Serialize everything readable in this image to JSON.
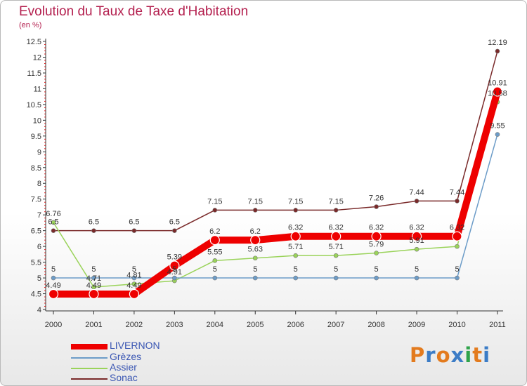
{
  "title": "Evolution du Taux de Taxe d'Habitation",
  "unit_label": "(en %)",
  "logo_text": "Proxiti",
  "colors": {
    "title": "#b4204f",
    "axis": "#333333",
    "legend_text": "#3a56b3"
  },
  "chart_data": {
    "type": "line",
    "title": "Evolution du Taux de Taxe d'Habitation",
    "ylabel": "(en %)",
    "xlabel": "",
    "categories": [
      "2000",
      "2001",
      "2002",
      "2003",
      "2004",
      "2005",
      "2006",
      "2007",
      "2008",
      "2009",
      "2010",
      "2011"
    ],
    "ylim": [
      4,
      12.5
    ],
    "yticks": [
      "4",
      "4.5",
      "5",
      "5.5",
      "6",
      "6.5",
      "7",
      "7.5",
      "8",
      "8.5",
      "9",
      "9.5",
      "10",
      "10.5",
      "11",
      "11.5",
      "12",
      "12.5"
    ],
    "legend_position": "bottom-left",
    "series": [
      {
        "name": "LIVERNON",
        "color": "#ee0000",
        "values": [
          4.49,
          4.49,
          4.49,
          5.39,
          6.2,
          6.2,
          6.32,
          6.32,
          6.32,
          6.32,
          6.32,
          10.91
        ],
        "labels": [
          "4.49",
          "4.49",
          "4.49",
          "5.39",
          "6.2",
          "6.2",
          "6.32",
          "6.32",
          "6.32",
          "6.32",
          "6.32",
          "10.91"
        ]
      },
      {
        "name": "Grèzes",
        "color": "#6c9cc8",
        "values": [
          5,
          5,
          5,
          5,
          5,
          5,
          5,
          5,
          5,
          5,
          5,
          9.55
        ],
        "labels": [
          "5",
          "5",
          "5",
          "5",
          "5",
          "5",
          "5",
          "5",
          "5",
          "5",
          "5",
          "9.55"
        ]
      },
      {
        "name": "Assier",
        "color": "#9ad35a",
        "values": [
          6.76,
          4.71,
          4.81,
          4.91,
          5.55,
          5.63,
          5.71,
          5.71,
          5.79,
          5.91,
          6,
          10.58
        ],
        "labels": [
          "6.76",
          "4.71",
          "4.81",
          "4.91",
          "5.55",
          "5.63",
          "5.71",
          "5.71",
          "5.79",
          "5.91",
          "",
          "10.58"
        ]
      },
      {
        "name": "Sonac",
        "color": "#7a2a2a",
        "values": [
          6.5,
          6.5,
          6.5,
          6.5,
          7.15,
          7.15,
          7.15,
          7.15,
          7.26,
          7.44,
          7.44,
          12.19
        ],
        "labels": [
          "6.5",
          "6.5",
          "6.5",
          "6.5",
          "7.15",
          "7.15",
          "7.15",
          "7.15",
          "7.26",
          "7.44",
          "7.44",
          "12.19"
        ]
      }
    ]
  }
}
